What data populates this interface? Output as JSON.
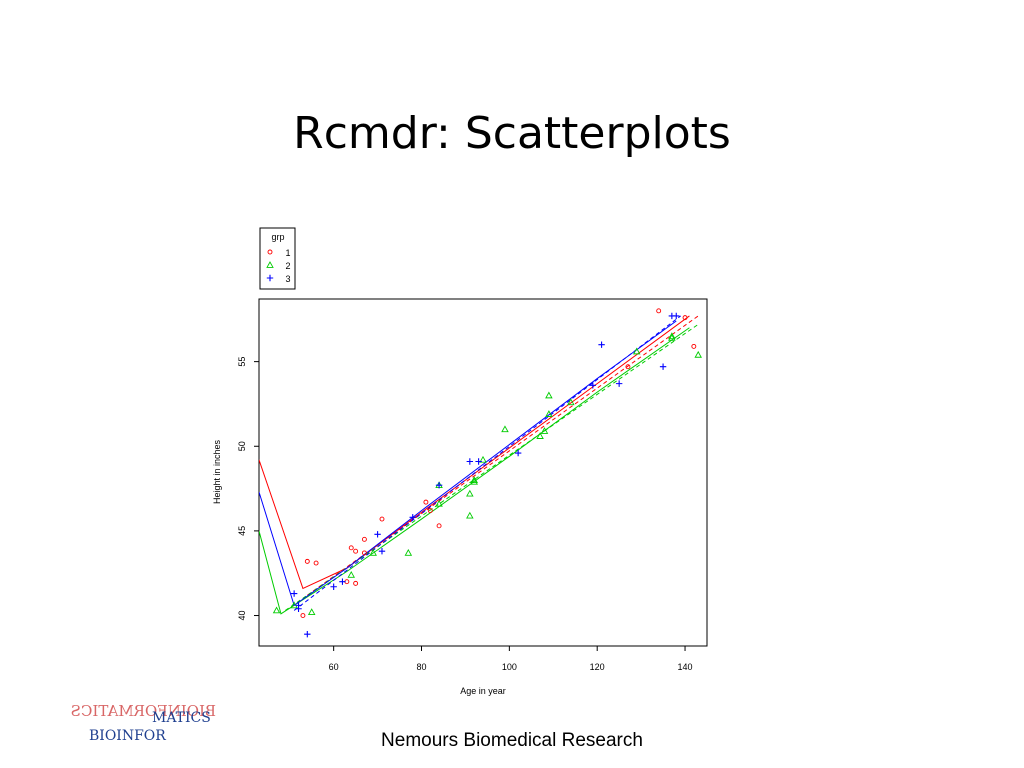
{
  "slide": {
    "title": "Rcmdr: Scatterplots",
    "footer": "Nemours Biomedical Research",
    "logo_text_top": "MATICS",
    "logo_text_bottom": "BIOINFOR",
    "logo_text_mirrored": "BIOINFORMATICS"
  },
  "chart_data": {
    "type": "scatter",
    "xlabel": "Age in year",
    "ylabel": "Height in inches",
    "xlim": [
      43,
      145
    ],
    "ylim": [
      38.2,
      58.7
    ],
    "x_ticks": [
      60,
      80,
      100,
      120,
      140
    ],
    "y_ticks": [
      40,
      45,
      50,
      55
    ],
    "grid": false,
    "legend": {
      "title": "grp",
      "placement": "top-left-outside",
      "entries": [
        "1",
        "2",
        "3"
      ]
    },
    "series": [
      {
        "name": "1",
        "marker": "circle",
        "color": "#ff0000",
        "points": [
          [
            53,
            40
          ],
          [
            54,
            43.2
          ],
          [
            56,
            43.1
          ],
          [
            63,
            42
          ],
          [
            64,
            44
          ],
          [
            65,
            43.8
          ],
          [
            65,
            41.9
          ],
          [
            67,
            44.5
          ],
          [
            67,
            43.7
          ],
          [
            71,
            45.7
          ],
          [
            81,
            46.7
          ],
          [
            82,
            46.2
          ],
          [
            84,
            45.3
          ],
          [
            127,
            54.7
          ],
          [
            134,
            58
          ],
          [
            140,
            57.6
          ],
          [
            142,
            55.9
          ]
        ],
        "smooth": [
          [
            43,
            49.2
          ],
          [
            53,
            41.6
          ],
          [
            63,
            42.8
          ],
          [
            80,
            46.1
          ],
          [
            100,
            49.9
          ],
          [
            120,
            53.7
          ],
          [
            141,
            57.7
          ]
        ],
        "spread": [
          [
            54,
            41.2
          ],
          [
            143,
            57.7
          ]
        ]
      },
      {
        "name": "2",
        "marker": "triangle",
        "color": "#00cc00",
        "points": [
          [
            47,
            40.3
          ],
          [
            51,
            40.6
          ],
          [
            55,
            40.2
          ],
          [
            64,
            42.4
          ],
          [
            69,
            43.7
          ],
          [
            77,
            43.7
          ],
          [
            84,
            47.7
          ],
          [
            84,
            46.6
          ],
          [
            91,
            47.2
          ],
          [
            91,
            45.9
          ],
          [
            92,
            48
          ],
          [
            92,
            47.9
          ],
          [
            94,
            49.2
          ],
          [
            99,
            51
          ],
          [
            107,
            50.6
          ],
          [
            108,
            50.9
          ],
          [
            109,
            53
          ],
          [
            109,
            51.9
          ],
          [
            114,
            52.6
          ],
          [
            129,
            55.6
          ],
          [
            137,
            56.5
          ],
          [
            137,
            56.4
          ],
          [
            143,
            55.4
          ]
        ],
        "smooth": [
          [
            43,
            45
          ],
          [
            48,
            40.1
          ],
          [
            63,
            42.6
          ],
          [
            80,
            45.7
          ],
          [
            100,
            49.4
          ],
          [
            120,
            53.2
          ],
          [
            141,
            57
          ]
        ],
        "spread": [
          [
            49,
            40.3
          ],
          [
            143,
            57.2
          ]
        ]
      },
      {
        "name": "3",
        "marker": "plus",
        "color": "#0000ff",
        "points": [
          [
            51,
            41.3
          ],
          [
            52,
            40.6
          ],
          [
            52,
            40.4
          ],
          [
            54,
            38.9
          ],
          [
            60,
            41.7
          ],
          [
            62,
            42
          ],
          [
            70,
            44.8
          ],
          [
            71,
            43.8
          ],
          [
            78,
            45.8
          ],
          [
            84,
            47.7
          ],
          [
            91,
            49.1
          ],
          [
            93,
            49.1
          ],
          [
            102,
            49.6
          ],
          [
            119,
            53.6
          ],
          [
            121,
            56
          ],
          [
            125,
            53.7
          ],
          [
            135,
            54.7
          ],
          [
            137,
            57.7
          ],
          [
            138,
            57.7
          ]
        ],
        "smooth": [
          [
            43,
            47.3
          ],
          [
            51,
            40.6
          ],
          [
            63,
            42.8
          ],
          [
            80,
            46.2
          ],
          [
            100,
            50.1
          ],
          [
            120,
            54
          ],
          [
            138,
            57.4
          ]
        ],
        "spread": [
          [
            51,
            40.3
          ],
          [
            139,
            57.7
          ]
        ]
      }
    ]
  }
}
